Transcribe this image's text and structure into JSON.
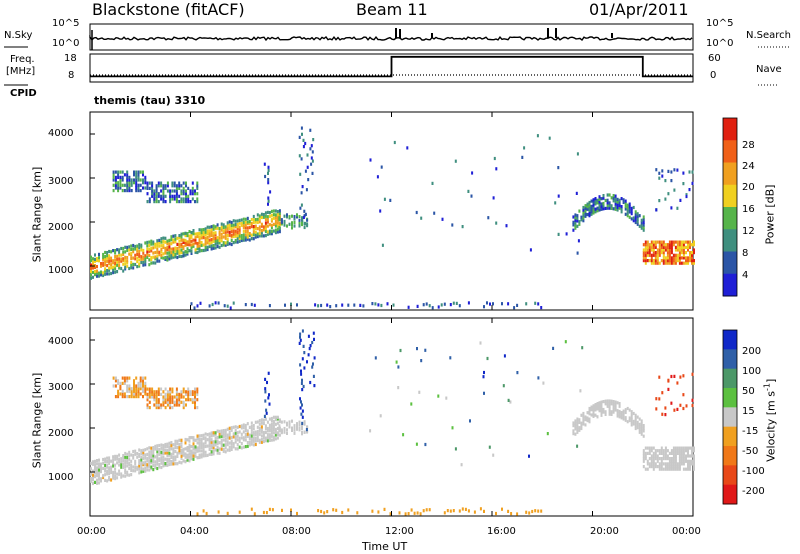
{
  "header": {
    "station": "Blackstone (fitACF)",
    "beam": "Beam 11",
    "date": "01/Apr/2011"
  },
  "labels": {
    "nsky": "N.Sky",
    "freq_line1": "Freq.",
    "freq_line2": "[MHz]",
    "cpid": "CPID",
    "nsearch": "N.Search",
    "nave": "Nave",
    "cpid_value": "themis (tau) 3310"
  },
  "chart_data": [
    {
      "type": "line",
      "name": "noise-panel",
      "left_ticks": [
        "10^5",
        "10^0"
      ],
      "right_ticks": [
        "10^5",
        "10^0"
      ],
      "left_label": "N.Sky",
      "right_label": "N.Search"
    },
    {
      "type": "line",
      "name": "frequency-panel",
      "left_ticks": [
        "18",
        "8"
      ],
      "right_ticks": [
        "60",
        "0"
      ],
      "series": [
        {
          "name": "Freq.",
          "x": [
            0,
            24
          ],
          "y": [
            10.5,
            10.5
          ]
        },
        {
          "name": "Nave",
          "x": [
            0,
            12,
            12,
            22,
            22,
            24
          ],
          "y": [
            10,
            10,
            17,
            17,
            10,
            10
          ]
        }
      ]
    },
    {
      "type": "heatmap",
      "name": "power",
      "xlim": [
        0,
        24
      ],
      "ylim": [
        0,
        4500
      ],
      "ylabel": "Slant Range [km]",
      "yticks": [
        1000,
        2000,
        3000,
        4000
      ],
      "colorbar": {
        "label": "Power [dB]",
        "ticks": [
          "4",
          "8",
          "12",
          "16",
          "20",
          "24",
          "28"
        ],
        "colors": [
          "#1f1fd6",
          "#2b55a6",
          "#3f8f7f",
          "#56b44a",
          "#f0d020",
          "#f0a020",
          "#f06018",
          "#e02010"
        ]
      }
    },
    {
      "type": "heatmap",
      "name": "velocity",
      "xlim": [
        0,
        24
      ],
      "ylim": [
        0,
        4500
      ],
      "ylabel": "Slant Range [km]",
      "yticks": [
        1000,
        2000,
        3000,
        4000
      ],
      "xticks": [
        "00:00",
        "04:00",
        "08:00",
        "12:00",
        "16:00",
        "20:00",
        "00:00"
      ],
      "xlabel": "Time UT",
      "colorbar": {
        "label": "Velocity [m s",
        "label_exp": "-1",
        "label_end": "]",
        "ticks": [
          "200",
          "100",
          "50",
          "15",
          "-15",
          "-50",
          "-100",
          "-200"
        ],
        "colors": [
          "#1028c8",
          "#3060a8",
          "#4c9868",
          "#5cc040",
          "#c8c8c8",
          "#f0a020",
          "#f07818",
          "#e84818",
          "#e01818"
        ]
      }
    }
  ]
}
